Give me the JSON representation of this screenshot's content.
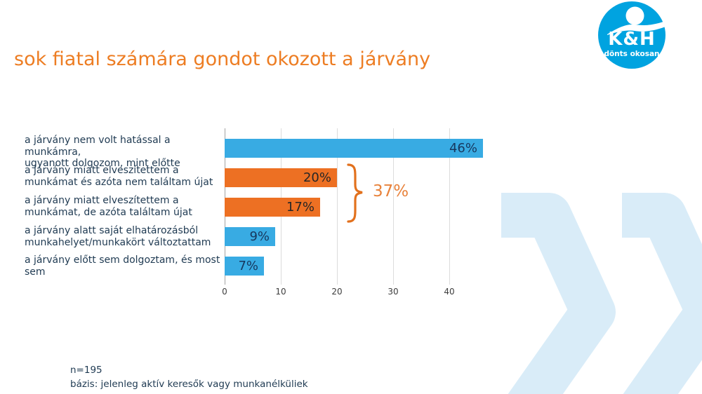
{
  "title": "sok fiatal számára gondot okozott a járvány",
  "title_color": "#ED7D23",
  "logo": {
    "brand": "K&H",
    "tagline": "dönts okosan",
    "circle_color": "#00A3E0"
  },
  "chart_data": {
    "type": "bar",
    "orientation": "horizontal",
    "categories": [
      "a járvány nem volt hatással a munkámra,\nugyanott dolgozom, mint előtte",
      "a járvány miatt elveszítettem a\nmunkámat és azóta nem találtam újat",
      "a járvány miatt elveszítettem a\nmunkámat, de azóta találtam újat",
      "a járvány alatt saját elhatározásból\nmunkahelyet/munkakört változtattam",
      "a járvány előtt sem dolgoztam, és most\nsem"
    ],
    "values": [
      46,
      20,
      17,
      9,
      7
    ],
    "value_labels": [
      "46%",
      "20%",
      "17%",
      "9%",
      "7%"
    ],
    "bar_colors": [
      "#38ABE3",
      "#ED7023",
      "#ED7023",
      "#38ABE3",
      "#38ABE3"
    ],
    "value_label_colors": [
      "#17375E",
      "#262626",
      "#262626",
      "#17375E",
      "#17375E"
    ],
    "x_ticks": [
      0,
      10,
      20,
      30,
      40
    ],
    "xlim": [
      0,
      47.5
    ],
    "grid": true,
    "legend": false,
    "annotation": {
      "label": "37%",
      "applies_to_categories": [
        1,
        2
      ],
      "color": "#E8823B",
      "brace_color": "#E2711D"
    },
    "title": "sok fiatal számára gondot okozott a járvány"
  },
  "notes": {
    "n": "n=195",
    "basis": "bázis: jelenleg aktív keresők vagy munkanélküliek"
  },
  "background": {
    "chevron_color": "#D9ECF8"
  }
}
